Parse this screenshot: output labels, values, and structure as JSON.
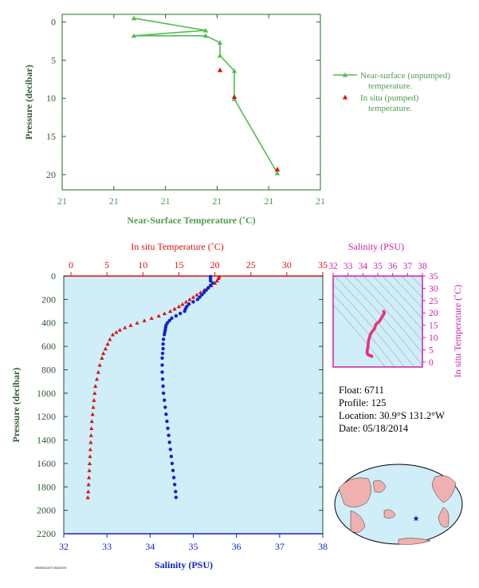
{
  "colors": {
    "near_surface": "#55bb55",
    "in_situ_temp": "#dd1111",
    "salinity": "#1122cc",
    "axis_text_green": "#4f9a4f",
    "salinity_label": "#cc22aa",
    "plot_bg": "#cfeef8",
    "ts_curve": "#e8357a"
  },
  "info": {
    "float": "Float:  6711",
    "profile": "Profile:  125",
    "location": "Location:  30.9°S  131.2°W",
    "date": "Date:  05/18/2014"
  },
  "footer": "NSI0023477.ISG0074",
  "chart_data": [
    {
      "type": "line",
      "name": "near-surface-temperature",
      "xlabel": "Near-Surface Temperature (˚C)",
      "ylabel": "Pressure (decibar)",
      "x_tick_labels": [
        "21",
        "21",
        "21",
        "21",
        "21",
        "21"
      ],
      "y_ticks": [
        0,
        5,
        10,
        15,
        20
      ],
      "ylim": [
        -1,
        22
      ],
      "y_inverted": true,
      "series": [
        {
          "name": "Near-surface (unpumped) temperature.",
          "points": [
            [
              20.5,
              -0.5
            ],
            [
              21.0,
              1.1
            ],
            [
              20.5,
              1.8
            ],
            [
              21.0,
              1.8
            ],
            [
              21.1,
              2.7
            ],
            [
              21.1,
              4.4
            ],
            [
              21.2,
              6.4
            ],
            [
              21.2,
              10.1
            ],
            [
              21.5,
              19.8
            ]
          ]
        },
        {
          "name": "In situ (pumped) temperature.",
          "points": [
            [
              21.1,
              6.3
            ],
            [
              21.2,
              9.8
            ],
            [
              21.5,
              19.3
            ]
          ]
        }
      ],
      "xlim_px_model": "x mapped linearly across panel"
    },
    {
      "type": "scatter",
      "name": "temperature-salinity-profile",
      "top_label": "In situ Temperature (˚C)",
      "bottom_label": "Salinity (PSU)",
      "ylabel": "Pressure (decibar)",
      "temp_ticks": [
        0,
        5,
        10,
        15,
        20,
        25,
        30,
        35
      ],
      "sal_ticks": [
        32,
        33,
        34,
        35,
        36,
        37,
        38
      ],
      "pressure_ticks": [
        0,
        200,
        400,
        600,
        800,
        1000,
        1200,
        1400,
        1600,
        1800,
        2000,
        2200
      ],
      "temp_lim": [
        -1,
        35
      ],
      "sal_lim": [
        32,
        38
      ],
      "pressure_lim": [
        0,
        2200
      ],
      "temperature": [
        [
          20.6,
          5
        ],
        [
          20.5,
          20
        ],
        [
          20.3,
          40
        ],
        [
          20.0,
          60
        ],
        [
          19.5,
          80
        ],
        [
          19.0,
          100
        ],
        [
          18.5,
          120
        ],
        [
          18.0,
          140
        ],
        [
          17.5,
          160
        ],
        [
          17.0,
          180
        ],
        [
          16.5,
          200
        ],
        [
          16.0,
          220
        ],
        [
          15.5,
          240
        ],
        [
          15.0,
          260
        ],
        [
          14.4,
          280
        ],
        [
          13.8,
          300
        ],
        [
          13.0,
          320
        ],
        [
          12.2,
          340
        ],
        [
          11.2,
          360
        ],
        [
          10.2,
          380
        ],
        [
          9.2,
          400
        ],
        [
          8.3,
          420
        ],
        [
          7.5,
          440
        ],
        [
          6.8,
          460
        ],
        [
          6.3,
          480
        ],
        [
          5.8,
          500
        ],
        [
          5.4,
          540
        ],
        [
          5.1,
          580
        ],
        [
          4.8,
          620
        ],
        [
          4.5,
          660
        ],
        [
          4.3,
          700
        ],
        [
          4.0,
          760
        ],
        [
          3.8,
          820
        ],
        [
          3.6,
          880
        ],
        [
          3.4,
          940
        ],
        [
          3.3,
          1000
        ],
        [
          3.2,
          1060
        ],
        [
          3.1,
          1120
        ],
        [
          3.0,
          1180
        ],
        [
          2.9,
          1240
        ],
        [
          2.85,
          1300
        ],
        [
          2.8,
          1360
        ],
        [
          2.75,
          1420
        ],
        [
          2.7,
          1480
        ],
        [
          2.65,
          1540
        ],
        [
          2.6,
          1600
        ],
        [
          2.55,
          1660
        ],
        [
          2.5,
          1720
        ],
        [
          2.45,
          1780
        ],
        [
          2.4,
          1840
        ],
        [
          2.35,
          1890
        ]
      ],
      "salinity": [
        [
          35.4,
          5
        ],
        [
          35.4,
          20
        ],
        [
          35.4,
          40
        ],
        [
          35.45,
          60
        ],
        [
          35.4,
          80
        ],
        [
          35.35,
          100
        ],
        [
          35.3,
          120
        ],
        [
          35.25,
          140
        ],
        [
          35.2,
          160
        ],
        [
          35.15,
          180
        ],
        [
          35.1,
          200
        ],
        [
          35.0,
          220
        ],
        [
          34.9,
          240
        ],
        [
          34.85,
          260
        ],
        [
          34.82,
          280
        ],
        [
          34.8,
          300
        ],
        [
          34.7,
          320
        ],
        [
          34.6,
          340
        ],
        [
          34.5,
          360
        ],
        [
          34.45,
          380
        ],
        [
          34.4,
          400
        ],
        [
          34.37,
          420
        ],
        [
          34.36,
          440
        ],
        [
          34.35,
          460
        ],
        [
          34.34,
          480
        ],
        [
          34.33,
          500
        ],
        [
          34.31,
          540
        ],
        [
          34.3,
          580
        ],
        [
          34.3,
          620
        ],
        [
          34.29,
          660
        ],
        [
          34.28,
          700
        ],
        [
          34.28,
          760
        ],
        [
          34.28,
          820
        ],
        [
          34.29,
          880
        ],
        [
          34.3,
          940
        ],
        [
          34.31,
          1000
        ],
        [
          34.33,
          1060
        ],
        [
          34.35,
          1120
        ],
        [
          34.37,
          1180
        ],
        [
          34.39,
          1240
        ],
        [
          34.41,
          1300
        ],
        [
          34.43,
          1360
        ],
        [
          34.45,
          1420
        ],
        [
          34.47,
          1480
        ],
        [
          34.49,
          1540
        ],
        [
          34.51,
          1600
        ],
        [
          34.53,
          1660
        ],
        [
          34.55,
          1720
        ],
        [
          34.57,
          1780
        ],
        [
          34.59,
          1840
        ],
        [
          34.6,
          1890
        ]
      ]
    },
    {
      "type": "line",
      "name": "ts-diagram",
      "top_label": "Salinity (PSU)",
      "right_label": "In situ Temperature (˚C)",
      "sal_ticks": [
        32,
        33,
        34,
        35,
        36,
        37,
        38
      ],
      "temp_ticks": [
        0,
        5,
        10,
        15,
        20,
        25,
        30,
        35
      ],
      "sal_lim": [
        32,
        38
      ],
      "temp_lim": [
        -2,
        35
      ]
    }
  ]
}
